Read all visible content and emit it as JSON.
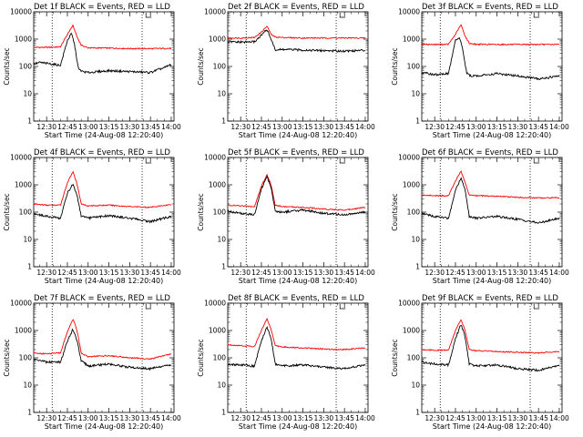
{
  "figure": {
    "colors": {
      "events": "#000000",
      "lld": "#ff0000",
      "axes": "#000000"
    }
  },
  "chart_data": [
    {
      "type": "line",
      "scale_y": "log",
      "ylim": [
        1,
        10000
      ],
      "title": "Det 1f BLACK = Events, RED = LLD",
      "xlabel": "Start Time (24-Aug-08 12:20:40)",
      "ylabel": "Counts/sec",
      "xticks": [
        "12:30",
        "12:45",
        "13:00",
        "13:15",
        "13:30",
        "13:45",
        "14:00"
      ],
      "yticks": [
        "1",
        "10",
        "100",
        "1000",
        "10000"
      ],
      "vlines": [
        "12:34",
        "13:39"
      ],
      "series": [
        {
          "color": "#ff0000",
          "x": [
            "12:20",
            "12:30",
            "12:40",
            "12:45",
            "12:49",
            "12:52",
            "12:55",
            "13:00",
            "13:15",
            "13:30",
            "13:45",
            "14:00"
          ],
          "y": [
            500,
            500,
            520,
            1500,
            3200,
            1200,
            600,
            480,
            470,
            450,
            450,
            460
          ]
        },
        {
          "color": "#000000",
          "x": [
            "12:20",
            "12:25",
            "12:30",
            "12:35",
            "12:40",
            "12:45",
            "12:48",
            "12:50",
            "12:53",
            "12:56",
            "13:00",
            "13:15",
            "13:30",
            "13:45",
            "13:50",
            "13:55",
            "14:00"
          ],
          "y": [
            120,
            140,
            130,
            120,
            110,
            900,
            1600,
            700,
            80,
            65,
            60,
            70,
            65,
            60,
            75,
            90,
            120
          ]
        }
      ]
    },
    {
      "type": "line",
      "scale_y": "log",
      "ylim": [
        1,
        10000
      ],
      "title": "Det 2f BLACK = Events, RED = LLD",
      "xlabel": "Start Time (24-Aug-08 12:20:40)",
      "ylabel": "Counts/sec",
      "xticks": [
        "12:30",
        "12:45",
        "13:00",
        "13:15",
        "13:30",
        "13:45",
        "14:00"
      ],
      "yticks": [
        "1",
        "10",
        "100",
        "1000",
        "10000"
      ],
      "vlines": [
        "12:34",
        "13:39"
      ],
      "series": [
        {
          "color": "#ff0000",
          "x": [
            "12:20",
            "12:30",
            "12:40",
            "12:45",
            "12:49",
            "12:52",
            "12:55",
            "13:00",
            "13:15",
            "13:30",
            "13:45",
            "14:00"
          ],
          "y": [
            1100,
            1100,
            1150,
            1800,
            3000,
            1500,
            1200,
            1150,
            1100,
            1100,
            1100,
            1100
          ]
        },
        {
          "color": "#000000",
          "x": [
            "12:20",
            "12:30",
            "12:40",
            "12:45",
            "12:49",
            "12:52",
            "12:55",
            "13:00",
            "13:15",
            "13:30",
            "13:45",
            "14:00"
          ],
          "y": [
            800,
            780,
            800,
            1400,
            2300,
            1000,
            400,
            420,
            400,
            380,
            370,
            390
          ]
        }
      ]
    },
    {
      "type": "line",
      "scale_y": "log",
      "ylim": [
        1,
        10000
      ],
      "title": "Det 3f BLACK = Events, RED = LLD",
      "xlabel": "Start Time (24-Aug-08 12:20:40)",
      "ylabel": "Counts/sec",
      "xticks": [
        "12:30",
        "12:45",
        "13:00",
        "13:15",
        "13:30",
        "13:45",
        "14:00"
      ],
      "yticks": [
        "1",
        "10",
        "100",
        "1000",
        "10000"
      ],
      "vlines": [
        "12:34",
        "13:39"
      ],
      "series": [
        {
          "color": "#ff0000",
          "x": [
            "12:20",
            "12:30",
            "12:40",
            "12:45",
            "12:49",
            "12:52",
            "12:55",
            "13:00",
            "13:15",
            "13:30",
            "13:45",
            "14:00"
          ],
          "y": [
            650,
            640,
            650,
            1500,
            3400,
            1300,
            700,
            650,
            640,
            640,
            640,
            640
          ]
        },
        {
          "color": "#000000",
          "x": [
            "12:20",
            "12:25",
            "12:30",
            "12:40",
            "12:45",
            "12:48",
            "12:50",
            "12:53",
            "12:56",
            "13:00",
            "13:15",
            "13:30",
            "13:45",
            "14:00"
          ],
          "y": [
            60,
            55,
            50,
            55,
            900,
            1100,
            500,
            60,
            45,
            45,
            55,
            45,
            35,
            45
          ]
        }
      ]
    },
    {
      "type": "line",
      "scale_y": "log",
      "ylim": [
        1,
        10000
      ],
      "title": "Det 4f BLACK = Events, RED = LLD",
      "xlabel": "Start Time (24-Aug-08 12:20:40)",
      "ylabel": "Counts/sec",
      "xticks": [
        "12:30",
        "12:45",
        "13:00",
        "13:15",
        "13:30",
        "13:45",
        "14:00"
      ],
      "yticks": [
        "1",
        "10",
        "100",
        "1000",
        "10000"
      ],
      "vlines": [
        "12:34",
        "13:39"
      ],
      "series": [
        {
          "color": "#ff0000",
          "x": [
            "12:20",
            "12:30",
            "12:40",
            "12:45",
            "12:49",
            "12:52",
            "12:55",
            "13:00",
            "13:15",
            "13:30",
            "13:45",
            "14:00"
          ],
          "y": [
            200,
            180,
            180,
            1200,
            3000,
            1100,
            200,
            170,
            180,
            160,
            150,
            190
          ]
        },
        {
          "color": "#000000",
          "x": [
            "12:20",
            "12:30",
            "12:40",
            "12:45",
            "12:49",
            "12:52",
            "12:55",
            "13:00",
            "13:15",
            "13:30",
            "13:45",
            "14:00"
          ],
          "y": [
            90,
            70,
            60,
            500,
            1100,
            400,
            70,
            60,
            75,
            60,
            45,
            70
          ]
        }
      ]
    },
    {
      "type": "line",
      "scale_y": "log",
      "ylim": [
        1,
        10000
      ],
      "title": "Det 5f BLACK = Events, RED = LLD",
      "xlabel": "Start Time (24-Aug-08 12:20:40)",
      "ylabel": "Counts/sec",
      "xticks": [
        "12:30",
        "12:45",
        "13:00",
        "13:15",
        "13:30",
        "13:45",
        "14:00"
      ],
      "yticks": [
        "1",
        "10",
        "100",
        "1000",
        "10000"
      ],
      "vlines": [
        "12:34",
        "13:39"
      ],
      "series": [
        {
          "color": "#ff0000",
          "x": [
            "12:20",
            "12:30",
            "12:40",
            "12:45",
            "12:49",
            "12:52",
            "12:55",
            "13:00",
            "13:15",
            "13:30",
            "13:45",
            "14:00"
          ],
          "y": [
            180,
            170,
            160,
            900,
            2400,
            1000,
            180,
            160,
            150,
            130,
            120,
            150
          ]
        },
        {
          "color": "#000000",
          "x": [
            "12:20",
            "12:30",
            "12:40",
            "12:45",
            "12:49",
            "12:52",
            "12:55",
            "13:00",
            "13:15",
            "13:30",
            "13:45",
            "14:00"
          ],
          "y": [
            110,
            90,
            80,
            700,
            2000,
            800,
            110,
            100,
            120,
            90,
            80,
            100
          ]
        }
      ]
    },
    {
      "type": "line",
      "scale_y": "log",
      "ylim": [
        1,
        10000
      ],
      "title": "Det 6f BLACK = Events, RED = LLD",
      "xlabel": "Start Time (24-Aug-08 12:20:40)",
      "ylabel": "Counts/sec",
      "xticks": [
        "12:30",
        "12:45",
        "13:00",
        "13:15",
        "13:30",
        "13:45",
        "14:00"
      ],
      "yticks": [
        "1",
        "10",
        "100",
        "1000",
        "10000"
      ],
      "vlines": [
        "12:34",
        "13:39"
      ],
      "series": [
        {
          "color": "#ff0000",
          "x": [
            "12:20",
            "12:30",
            "12:40",
            "12:45",
            "12:49",
            "12:52",
            "12:55",
            "13:00",
            "13:15",
            "13:30",
            "13:45",
            "14:00"
          ],
          "y": [
            420,
            400,
            400,
            1400,
            3200,
            1200,
            420,
            400,
            380,
            350,
            330,
            340
          ]
        },
        {
          "color": "#000000",
          "x": [
            "12:20",
            "12:30",
            "12:40",
            "12:45",
            "12:49",
            "12:52",
            "12:55",
            "13:00",
            "13:15",
            "13:30",
            "13:45",
            "14:00"
          ],
          "y": [
            90,
            70,
            60,
            600,
            1800,
            700,
            70,
            60,
            70,
            55,
            40,
            60
          ]
        }
      ]
    },
    {
      "type": "line",
      "scale_y": "log",
      "ylim": [
        1,
        10000
      ],
      "title": "Det 7f BLACK = Events, RED = LLD",
      "xlabel": "Start Time (24-Aug-08 12:20:40)",
      "ylabel": "Counts/sec",
      "xticks": [
        "12:30",
        "12:45",
        "13:00",
        "13:15",
        "13:30",
        "13:45",
        "14:00"
      ],
      "yticks": [
        "1",
        "10",
        "100",
        "1000",
        "10000"
      ],
      "vlines": [
        "12:34",
        "13:39"
      ],
      "series": [
        {
          "color": "#ff0000",
          "x": [
            "12:20",
            "12:30",
            "12:40",
            "12:45",
            "12:49",
            "12:52",
            "12:55",
            "13:00",
            "13:15",
            "13:30",
            "13:45",
            "14:00"
          ],
          "y": [
            150,
            140,
            150,
            900,
            2600,
            1000,
            150,
            110,
            120,
            100,
            90,
            140
          ]
        },
        {
          "color": "#000000",
          "x": [
            "12:20",
            "12:30",
            "12:40",
            "12:45",
            "12:49",
            "12:52",
            "12:55",
            "13:00",
            "13:15",
            "13:30",
            "13:45",
            "14:00"
          ],
          "y": [
            90,
            70,
            70,
            400,
            1100,
            400,
            80,
            50,
            60,
            45,
            40,
            55
          ]
        }
      ]
    },
    {
      "type": "line",
      "scale_y": "log",
      "ylim": [
        1,
        10000
      ],
      "title": "Det 8f BLACK = Events, RED = LLD",
      "xlabel": "Start Time (24-Aug-08 12:20:40)",
      "ylabel": "Counts/sec",
      "xticks": [
        "12:30",
        "12:45",
        "13:00",
        "13:15",
        "13:30",
        "13:45",
        "14:00"
      ],
      "yticks": [
        "1",
        "10",
        "100",
        "1000",
        "10000"
      ],
      "vlines": [
        "12:34",
        "13:39"
      ],
      "series": [
        {
          "color": "#ff0000",
          "x": [
            "12:20",
            "12:30",
            "12:40",
            "12:45",
            "12:49",
            "12:52",
            "12:55",
            "13:00",
            "13:15",
            "13:30",
            "13:45",
            "14:00"
          ],
          "y": [
            300,
            280,
            260,
            1000,
            2700,
            1100,
            280,
            250,
            230,
            210,
            200,
            230
          ]
        },
        {
          "color": "#000000",
          "x": [
            "12:20",
            "12:30",
            "12:40",
            "12:45",
            "12:49",
            "12:52",
            "12:55",
            "13:00",
            "13:15",
            "13:30",
            "13:45",
            "14:00"
          ],
          "y": [
            60,
            55,
            50,
            400,
            1400,
            500,
            60,
            50,
            55,
            45,
            40,
            55
          ]
        }
      ]
    },
    {
      "type": "line",
      "scale_y": "log",
      "ylim": [
        1,
        10000
      ],
      "title": "Det 9f BLACK = Events, RED = LLD",
      "xlabel": "Start Time (24-Aug-08 12:20:40)",
      "ylabel": "Counts/sec",
      "xticks": [
        "12:30",
        "12:45",
        "13:00",
        "13:15",
        "13:30",
        "13:45",
        "14:00"
      ],
      "yticks": [
        "1",
        "10",
        "100",
        "1000",
        "10000"
      ],
      "vlines": [
        "12:34",
        "13:39"
      ],
      "series": [
        {
          "color": "#ff0000",
          "x": [
            "12:20",
            "12:30",
            "12:40",
            "12:45",
            "12:49",
            "12:52",
            "12:55",
            "13:00",
            "13:15",
            "13:30",
            "13:45",
            "14:00"
          ],
          "y": [
            200,
            190,
            190,
            1000,
            2600,
            1000,
            200,
            180,
            170,
            160,
            150,
            170
          ]
        },
        {
          "color": "#000000",
          "x": [
            "12:20",
            "12:30",
            "12:40",
            "12:45",
            "12:49",
            "12:52",
            "12:55",
            "13:00",
            "13:15",
            "13:30",
            "13:45",
            "14:00"
          ],
          "y": [
            70,
            60,
            55,
            500,
            1700,
            600,
            60,
            50,
            55,
            40,
            35,
            55
          ]
        }
      ]
    }
  ]
}
